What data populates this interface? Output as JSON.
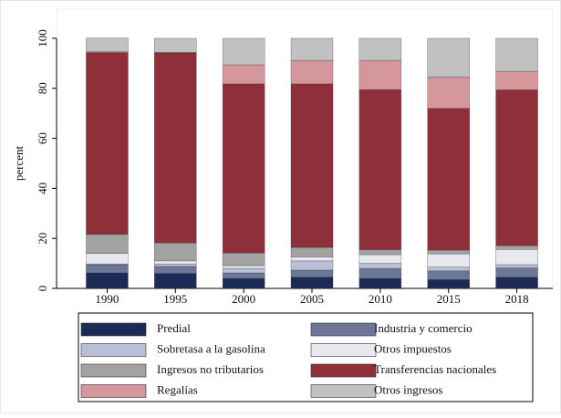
{
  "chart_data": {
    "type": "stacked_bar",
    "y_label": "percent",
    "categories": [
      "1990",
      "1995",
      "2000",
      "2005",
      "2010",
      "2015",
      "2018"
    ],
    "ylim": [
      0,
      100
    ],
    "yticks": [
      0,
      20,
      40,
      60,
      80,
      100
    ],
    "series": [
      {
        "name": "Predial",
        "color": "#1b2b55",
        "values": [
          6.2,
          6,
          4,
          4.5,
          4,
          3.5,
          4.5
        ]
      },
      {
        "name": "Industria y comercio",
        "color": "#6c7795",
        "values": [
          3.3,
          2.8,
          2.2,
          2.8,
          4,
          3.5,
          3.7
        ]
      },
      {
        "name": "Sobretasa a la gasolina",
        "color": "#b8bfd6",
        "values": [
          0.3,
          1,
          1.8,
          3.7,
          2,
          1.5,
          1.3
        ]
      },
      {
        "name": "Otros impuestos",
        "color": "#e8e9ef",
        "values": [
          4.2,
          1.2,
          1.1,
          1.6,
          3.5,
          5.3,
          6.1
        ]
      },
      {
        "name": "Ingresos no tributarios",
        "color": "#a2a2a2",
        "values": [
          7.6,
          7.2,
          5.1,
          3.8,
          2,
          1.5,
          1.5
        ]
      },
      {
        "name": "Transferencias nacionales",
        "color": "#8f2f3a",
        "values": [
          72.7,
          76,
          67.6,
          65.4,
          64,
          56.7,
          62.3
        ]
      },
      {
        "name": "Regalías",
        "color": "#d4979c",
        "values": [
          0.3,
          0.2,
          7.6,
          9.4,
          11.7,
          12.5,
          7.4
        ]
      },
      {
        "name": "Otros ingresos",
        "color": "#c1c1c1",
        "values": [
          5.5,
          5.6,
          10.6,
          8.8,
          8.8,
          15.5,
          13.2
        ]
      }
    ]
  }
}
